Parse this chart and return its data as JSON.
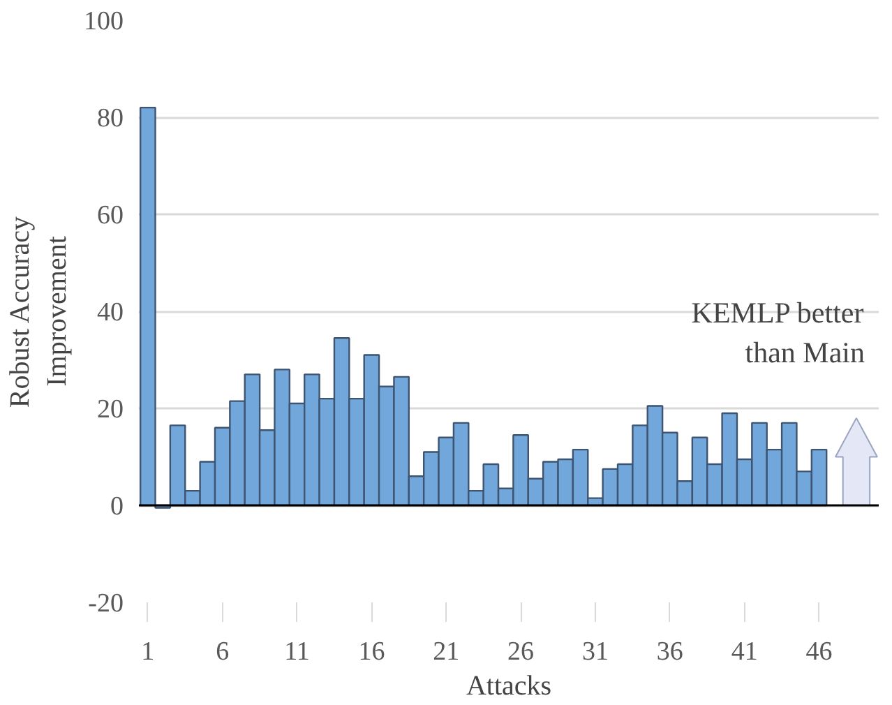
{
  "chart_data": {
    "type": "bar",
    "xlabel": "Attacks",
    "ylabel": "Robust Accuracy\nImprovement",
    "x": [
      1,
      2,
      3,
      4,
      5,
      6,
      7,
      8,
      9,
      10,
      11,
      12,
      13,
      14,
      15,
      16,
      17,
      18,
      19,
      20,
      21,
      22,
      23,
      24,
      25,
      26,
      27,
      28,
      29,
      30,
      31,
      32,
      33,
      34,
      35,
      36,
      37,
      38,
      39,
      40,
      41,
      42,
      43,
      44,
      45,
      46
    ],
    "values": [
      82,
      -0.5,
      16.5,
      3,
      9,
      16,
      21.5,
      27,
      15.5,
      28,
      21,
      27,
      22,
      34.5,
      22,
      31,
      24.5,
      26.5,
      6,
      11,
      14,
      17,
      3,
      8.5,
      3.5,
      14.5,
      5.5,
      9,
      9.5,
      11.5,
      1.5,
      7.5,
      8.5,
      16.5,
      20.5,
      15,
      5,
      14,
      8.5,
      19,
      9.5,
      17,
      11.5,
      17,
      7,
      11.5
    ],
    "color": "#72a7db",
    "xlim": [
      0.4,
      50
    ],
    "xticks": [
      1,
      6,
      11,
      16,
      21,
      26,
      31,
      36,
      41,
      46
    ],
    "ylim": [
      -20,
      100
    ],
    "yticks": [
      -20,
      0,
      20,
      40,
      60,
      80,
      100
    ],
    "grid": "y",
    "annotations": [
      "KEMLP better\nthan Main"
    ]
  }
}
